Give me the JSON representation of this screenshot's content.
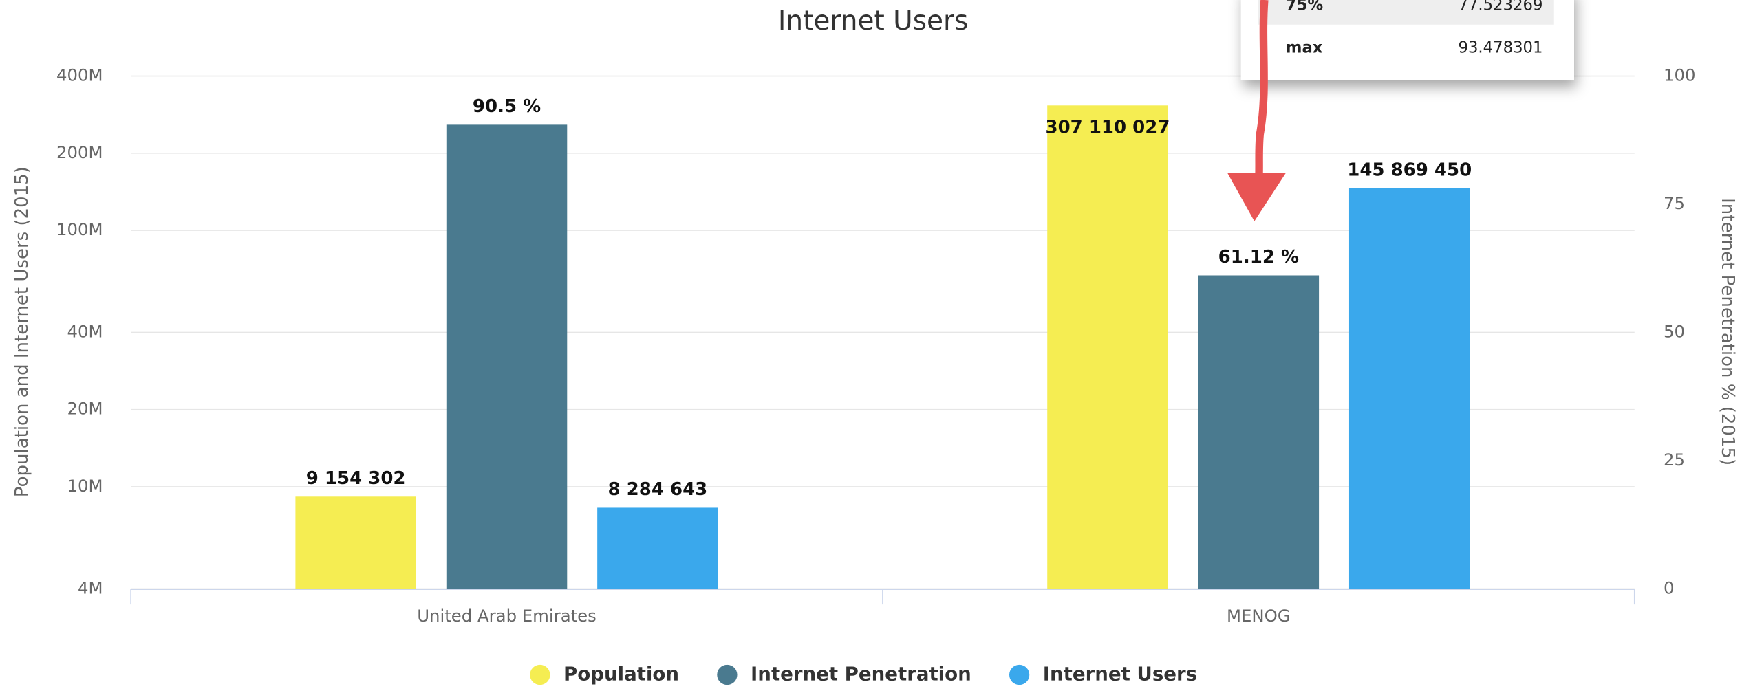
{
  "chart_data": {
    "type": "bar",
    "title": "Internet Users",
    "categories": [
      "United Arab Emirates",
      "MENOG"
    ],
    "ylabel": "Population and Internet Users (2015)",
    "y2label": "Internet Penetration % (2015)",
    "ylog": true,
    "ylim": [
      4000000,
      400000000
    ],
    "yticks": [
      {
        "value": 4000000,
        "label": "4M"
      },
      {
        "value": 10000000,
        "label": "10M"
      },
      {
        "value": 20000000,
        "label": "20M"
      },
      {
        "value": 40000000,
        "label": "40M"
      },
      {
        "value": 100000000,
        "label": "100M"
      },
      {
        "value": 200000000,
        "label": "200M"
      },
      {
        "value": 400000000,
        "label": "400M"
      }
    ],
    "y2lim": [
      0,
      100
    ],
    "y2ticks": [
      0,
      25,
      50,
      75,
      100
    ],
    "grid": true,
    "legend": "bottom",
    "series": [
      {
        "name": "Population",
        "color": "#f5ed52",
        "values": [
          9154302,
          307110027
        ],
        "value_labels": [
          "9 154 302",
          "307 110 027"
        ]
      },
      {
        "name": "Internet Penetration",
        "color": "#4a7a8f",
        "axis": "y2",
        "values": [
          90.5,
          61.12
        ],
        "value_labels": [
          "90.5 %",
          "61.12 %"
        ]
      },
      {
        "name": "Internet Users",
        "color": "#3aa8ec",
        "values": [
          8284643,
          145869450
        ],
        "value_labels": [
          "8 284 643",
          "145 869 450"
        ]
      }
    ]
  },
  "overlay": {
    "rows": [
      [
        "75%",
        "77.523269"
      ],
      [
        "max",
        "93.478301"
      ]
    ]
  }
}
